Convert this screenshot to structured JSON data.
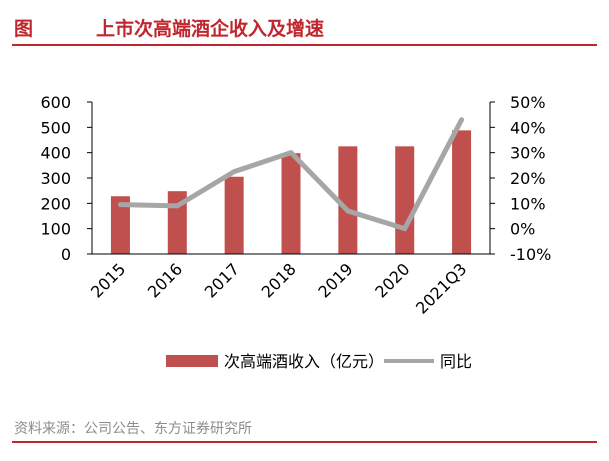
{
  "header": {
    "figure_label": "图",
    "title": "上市次高端酒企收入及增速"
  },
  "source": "资料来源：公司公告、东方证券研究所",
  "colors": {
    "accent": "#c0262d",
    "bar": "#c0504d",
    "line": "#a6a6a6"
  },
  "chart_data": {
    "type": "bar",
    "categories": [
      "2015",
      "2016",
      "2017",
      "2018",
      "2019",
      "2020",
      "2021Q3"
    ],
    "series": [
      {
        "name": "次高端酒收入（亿元）",
        "type": "bar",
        "axis": "left",
        "values": [
          228,
          248,
          305,
          398,
          425,
          425,
          488
        ]
      },
      {
        "name": "同比",
        "type": "line",
        "axis": "right",
        "values": [
          9.5,
          9.0,
          22.5,
          30.0,
          7.0,
          0.0,
          43.0
        ]
      }
    ],
    "y_left": {
      "min": 0,
      "max": 600,
      "step": 100,
      "tick_labels": [
        "0",
        "100",
        "200",
        "300",
        "400",
        "500",
        "600"
      ]
    },
    "y_right": {
      "min": -10,
      "max": 50,
      "step": 10,
      "tick_labels": [
        "-10%",
        "0%",
        "10%",
        "20%",
        "30%",
        "40%",
        "50%"
      ]
    },
    "legend": {
      "position": "bottom"
    },
    "grid": false
  }
}
